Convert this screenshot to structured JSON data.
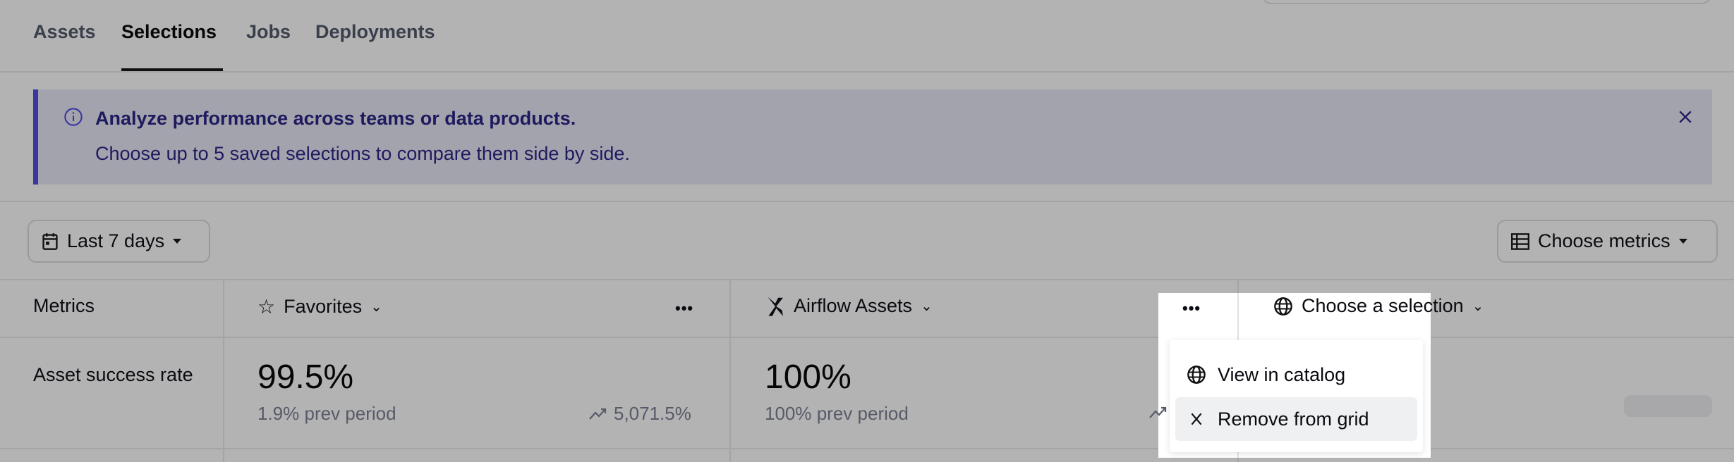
{
  "tabs": [
    {
      "label": "Assets"
    },
    {
      "label": "Selections",
      "active": true
    },
    {
      "label": "Jobs"
    },
    {
      "label": "Deployments"
    }
  ],
  "banner": {
    "title": "Analyze performance across teams or data products.",
    "body": "Choose up to 5 saved selections to compare them side by side.",
    "icon": "info-icon",
    "close_icon": "close-icon",
    "accent": "#3b36a0"
  },
  "toolbar": {
    "date_range": "Last 7 days",
    "choose_metrics": "Choose metrics"
  },
  "grid": {
    "metrics_header": "Metrics",
    "columns": [
      {
        "name": "Favorites",
        "icon": "star-icon"
      },
      {
        "name": "Airflow Assets",
        "icon": "airflow-icon"
      },
      {
        "name": "Choose a selection",
        "icon": "globe-icon"
      }
    ],
    "rows": [
      {
        "metric": "Asset success rate",
        "values": [
          {
            "value": "99.5%",
            "prev": "1.9% prev period",
            "change": "5,071.5%"
          },
          {
            "value": "100%",
            "prev": "100% prev period",
            "change": ""
          }
        ]
      }
    ]
  },
  "menu": {
    "items": [
      {
        "label": "View in catalog",
        "icon": "globe-icon"
      },
      {
        "label": "Remove from grid",
        "icon": "close-icon"
      }
    ]
  }
}
